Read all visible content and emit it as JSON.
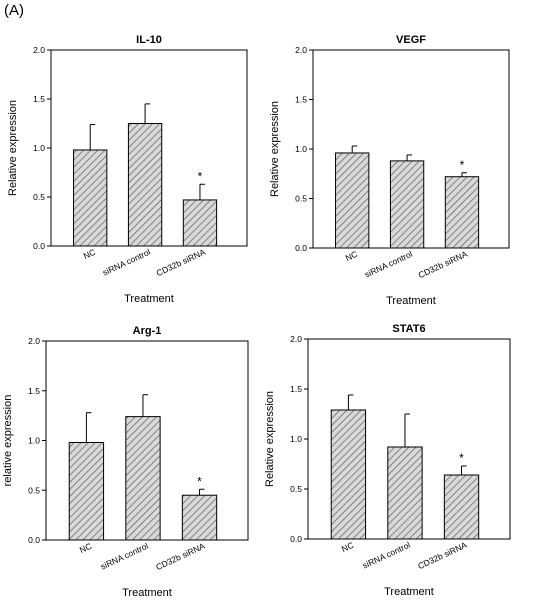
{
  "figure": {
    "panel_label": "(A)"
  },
  "chart_data": [
    {
      "type": "bar",
      "title": "IL-10",
      "xlabel": "Treatment",
      "ylabel": "Relative expression",
      "categories": [
        "NC",
        "siRNA control",
        "CD32b siRNA"
      ],
      "values": [
        0.98,
        1.25,
        0.47
      ],
      "errors": [
        0.26,
        0.2,
        0.16
      ],
      "significance": [
        "",
        "",
        "*"
      ],
      "ylim": [
        0,
        2.0
      ],
      "yticks": [
        "0.0",
        "0.5",
        "1.0",
        "1.5",
        "2.0"
      ],
      "bar_pattern": "diagonal-hatch"
    },
    {
      "type": "bar",
      "title": "VEGF",
      "xlabel": "Treatment",
      "ylabel": "Relative expression",
      "categories": [
        "NC",
        "siRNA control",
        "CD32b siRNA"
      ],
      "values": [
        0.96,
        0.88,
        0.72
      ],
      "errors": [
        0.07,
        0.06,
        0.04
      ],
      "significance": [
        "",
        "",
        "*"
      ],
      "ylim": [
        0,
        2.0
      ],
      "yticks": [
        "0.0",
        "0.5",
        "1.0",
        "1.5",
        "2.0"
      ],
      "bar_pattern": "diagonal-hatch"
    },
    {
      "type": "bar",
      "title": "Arg-1",
      "xlabel": "Treatment",
      "ylabel": "relative expression",
      "categories": [
        "NC",
        "siRNA control",
        "CD32b siRNA"
      ],
      "values": [
        0.98,
        1.24,
        0.45
      ],
      "errors": [
        0.3,
        0.22,
        0.06
      ],
      "significance": [
        "",
        "",
        "*"
      ],
      "ylim": [
        0,
        2.0
      ],
      "yticks": [
        "0.0",
        "0.5",
        "1.0",
        "1.5",
        "2.0"
      ],
      "bar_pattern": "diagonal-hatch"
    },
    {
      "type": "bar",
      "title": "STAT6",
      "xlabel": "Treatment",
      "ylabel": "Relative expression",
      "categories": [
        "NC",
        "siRNA control",
        "CD32b siRNA"
      ],
      "values": [
        1.29,
        0.92,
        0.64
      ],
      "errors": [
        0.15,
        0.33,
        0.09
      ],
      "significance": [
        "",
        "",
        "*"
      ],
      "ylim": [
        0,
        2.0
      ],
      "yticks": [
        "0.0",
        "0.5",
        "1.0",
        "1.5",
        "2.0"
      ],
      "bar_pattern": "diagonal-hatch"
    }
  ]
}
